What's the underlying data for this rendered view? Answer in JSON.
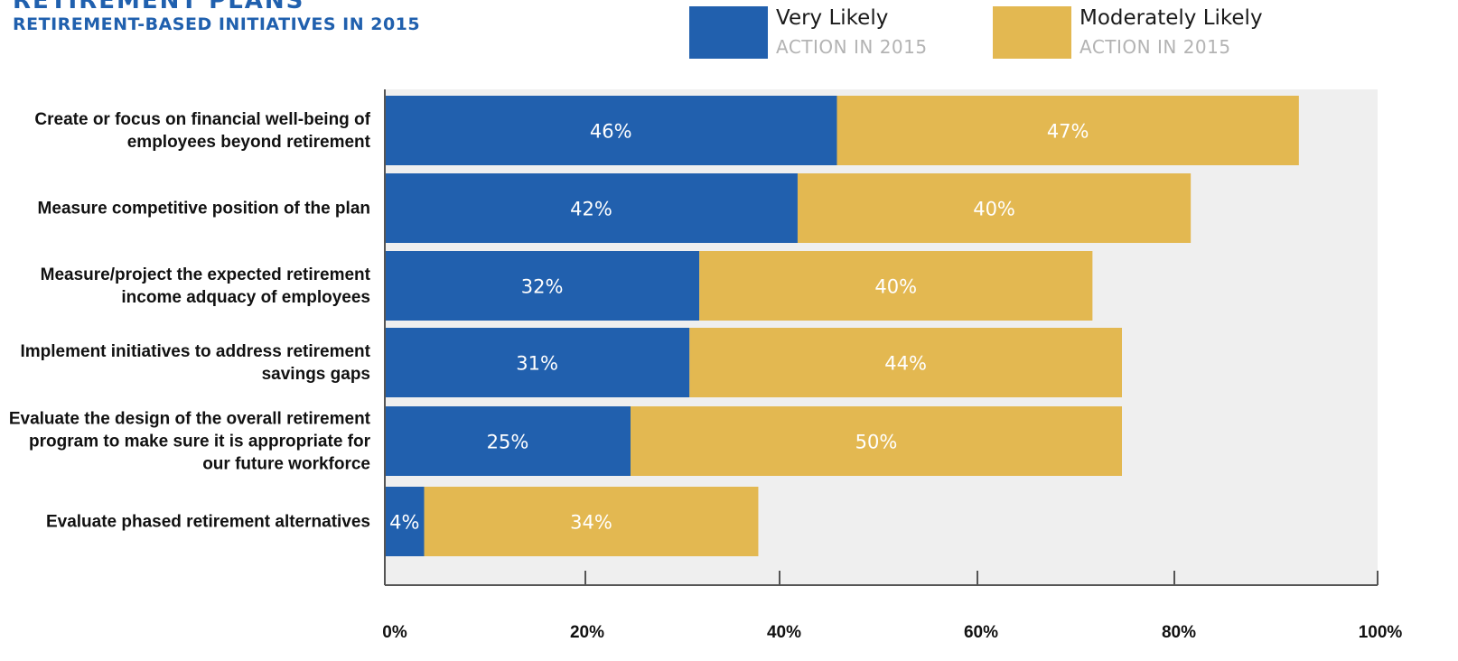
{
  "header": {
    "title": "RETIREMENT   PLANS",
    "subtitle": "RETIREMENT-BASED INITIATIVES IN 2015"
  },
  "legend": [
    {
      "name": "Very Likely",
      "note": "ACTION IN 2015",
      "color": "#2160ae"
    },
    {
      "name": "Moderately Likely",
      "note": "ACTION IN 2015",
      "color": "#e3b851"
    }
  ],
  "colors": {
    "plot_background": "#efefef",
    "axis": "#555555",
    "value_label": "#ffffff"
  },
  "chart_data": {
    "type": "bar",
    "orientation": "horizontal",
    "stacked": true,
    "categories": [
      [
        "Create or focus on financial well-being of",
        "employees beyond retirement"
      ],
      [
        "Measure competitive position of the plan"
      ],
      [
        "Measure/project the expected retirement",
        "income adquacy of employees"
      ],
      [
        "Implement initiatives to address retirement",
        "savings gaps"
      ],
      [
        "Evaluate the design of the overall retirement",
        "program to make sure it is appropriate for",
        "our future workforce"
      ],
      [
        "Evaluate phased retirement alternatives"
      ]
    ],
    "series": [
      {
        "name": "Very Likely",
        "values": [
          46,
          42,
          32,
          31,
          25,
          4
        ],
        "labels": [
          "46%",
          "42%",
          "32%",
          "31%",
          "25%",
          "4%"
        ]
      },
      {
        "name": "Moderately Likely",
        "values": [
          47,
          40,
          40,
          44,
          50,
          34
        ],
        "labels": [
          "47%",
          "40%",
          "40%",
          "44%",
          "50%",
          "34%"
        ]
      }
    ],
    "xlim": [
      0,
      100
    ],
    "xticks": [
      0,
      20,
      40,
      60,
      80,
      100
    ],
    "xtick_labels": [
      "0%",
      "20%",
      "40%",
      "60%",
      "80%",
      "100%"
    ],
    "grid": false,
    "legend_position": "top-right"
  }
}
